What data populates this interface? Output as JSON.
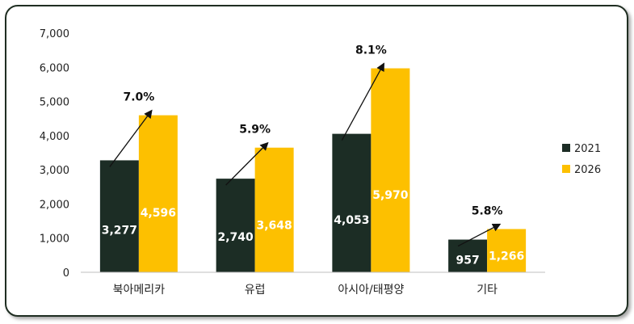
{
  "chart_data": {
    "type": "bar",
    "categories": [
      "북아메리카",
      "유럽",
      "아시아/태평양",
      "기타"
    ],
    "series": [
      {
        "name": "2021",
        "values": [
          3277,
          2740,
          4053,
          957
        ],
        "color": "#1c2d25",
        "labels": [
          "3,277",
          "2,740",
          "4,053",
          "957"
        ]
      },
      {
        "name": "2026",
        "values": [
          4596,
          3648,
          5970,
          1266
        ],
        "color": "#fdc000",
        "labels": [
          "4,596",
          "3,648",
          "5,970",
          "1,266"
        ]
      }
    ],
    "growth_labels": [
      "7.0%",
      "5.9%",
      "8.1%",
      "5.8%"
    ],
    "ylim": [
      0,
      7000
    ],
    "yticks": [
      0,
      1000,
      2000,
      3000,
      4000,
      5000,
      6000,
      7000
    ],
    "ytick_labels": [
      "0",
      "1,000",
      "2,000",
      "3,000",
      "4,000",
      "5,000",
      "6,000",
      "7,000"
    ],
    "legend_position": "right",
    "grid": false
  }
}
